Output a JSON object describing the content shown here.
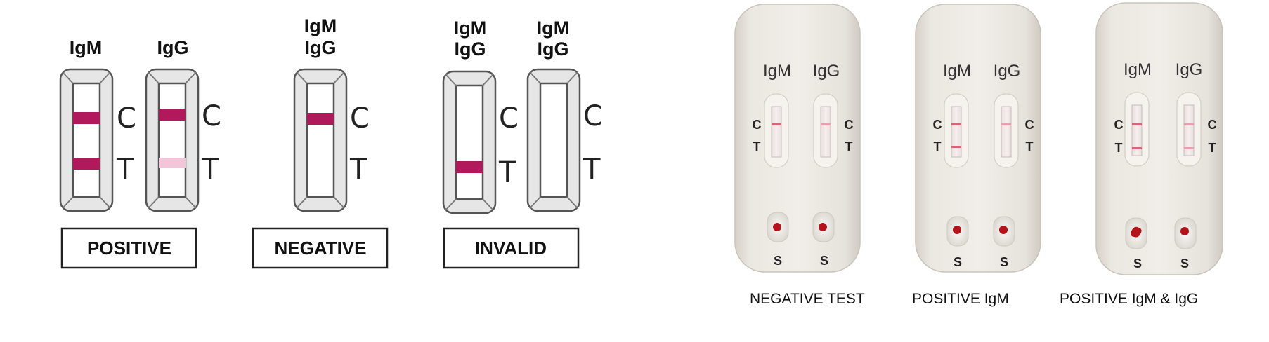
{
  "diagram": {
    "positive": {
      "label_igm": "IgM",
      "label_igg": "IgG",
      "c": "C",
      "t": "T",
      "title": "POSITIVE"
    },
    "negative": {
      "label_line1": "IgM",
      "label_line2": "IgG",
      "c": "C",
      "t": "T",
      "title": "NEGATIVE"
    },
    "invalid": {
      "left_line1": "IgM",
      "left_line2": "IgG",
      "right_line1": "IgM",
      "right_line2": "IgG",
      "c": "C",
      "t": "T",
      "title": "INVALID"
    }
  },
  "photos": {
    "cassettes": [
      {
        "igm": "IgM",
        "igg": "IgG",
        "c": "C",
        "t": "T",
        "s": "S",
        "caption": "NEGATIVE TEST"
      },
      {
        "igm": "IgM",
        "igg": "IgG",
        "c": "C",
        "t": "T",
        "s": "S",
        "caption": "POSITIVE IgM"
      },
      {
        "igm": "IgM",
        "igg": "IgG",
        "c": "C",
        "t": "T",
        "s": "S",
        "caption": "POSITIVE IgM & IgG"
      }
    ]
  },
  "colors": {
    "band_strong": "#b01a5c",
    "band_faint": "#f3c5d8",
    "photo_band": "#d9647a",
    "blood_drop": "#b3141c"
  }
}
